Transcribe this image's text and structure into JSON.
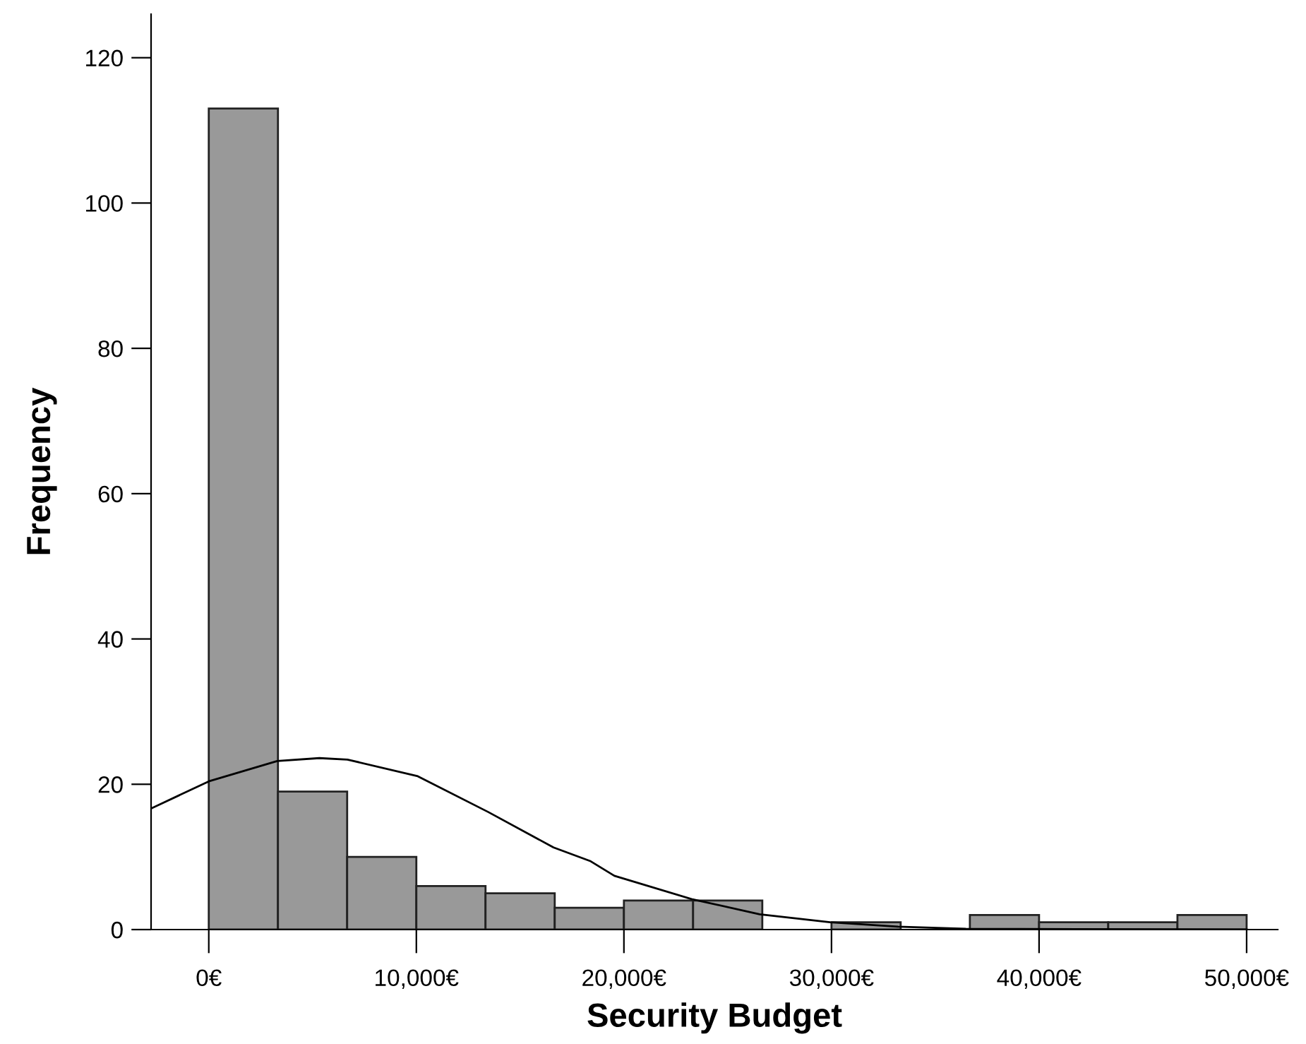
{
  "chart_data": {
    "type": "histogram",
    "xlabel": "Security Budget",
    "ylabel": "Frequency",
    "bins": [
      0,
      3333,
      6667,
      10000,
      13333,
      16667,
      20000,
      23333,
      26667,
      30000,
      33333,
      36667,
      40000,
      43333,
      46667,
      50000
    ],
    "values": [
      113,
      19,
      10,
      6,
      5,
      3,
      4,
      4,
      0,
      1,
      0,
      2,
      1,
      1,
      2
    ],
    "color": "#999999",
    "series": [
      {
        "type": "line",
        "color": "#000000",
        "x": [
          -2750,
          0,
          3300,
          5330,
          6680,
          10070,
          13450,
          16610,
          18400,
          19540,
          23260,
          26540,
          29930,
          33200,
          36470,
          50000
        ],
        "values": [
          16.7,
          20.4,
          23.2,
          23.6,
          23.4,
          21.1,
          16.2,
          11.3,
          9.4,
          7.4,
          4.2,
          2.1,
          1.0,
          0.4,
          0.1,
          0
        ]
      }
    ],
    "xlim": [
      -2780,
      51500
    ],
    "ylim": [
      0,
      126
    ],
    "xticks": [
      {
        "value": 0,
        "label": "0€"
      },
      {
        "value": 10000,
        "label": "10,000€"
      },
      {
        "value": 20000,
        "label": "20,000€"
      },
      {
        "value": 30000,
        "label": "30,000€"
      },
      {
        "value": 40000,
        "label": "40,000€"
      },
      {
        "value": 50000,
        "label": "50,000€"
      }
    ],
    "yticks": [
      0,
      20,
      40,
      60,
      80,
      100,
      120
    ],
    "grid": false,
    "legend": false
  }
}
